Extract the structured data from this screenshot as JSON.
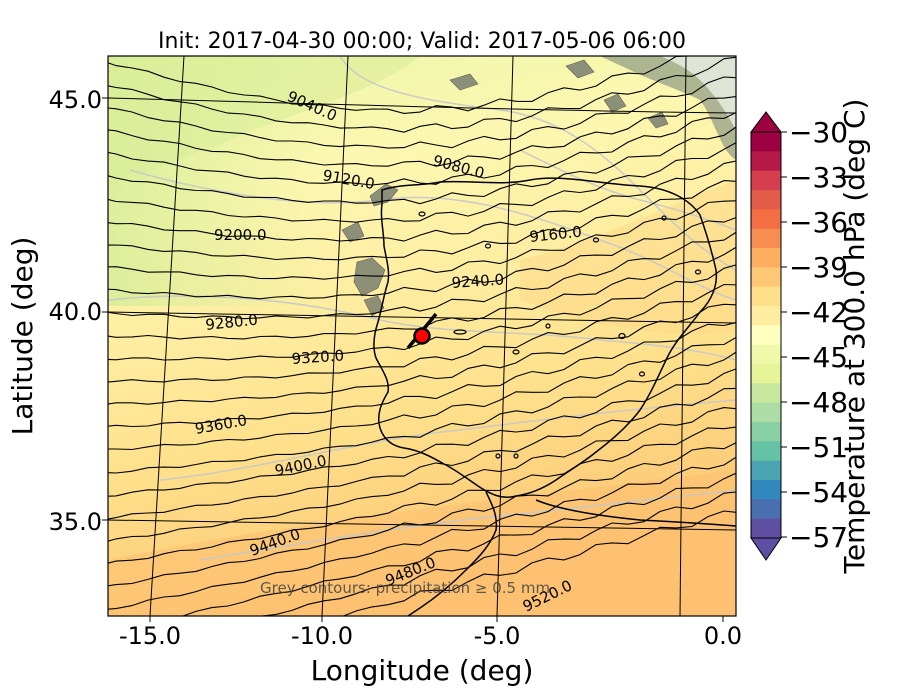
{
  "chart_data": {
    "type": "map",
    "title": "Init: 2017-04-30 00:00; Valid: 2017-05-06 06:00",
    "xlabel": "Longitude (deg)",
    "ylabel": "Latitude (deg)",
    "xlim": [
      -16.0,
      0.3
    ],
    "ylim": [
      32.8,
      46.0
    ],
    "xticks": [
      "-15.0",
      "-10.0",
      "-5.0",
      "0.0"
    ],
    "yticks": [
      "45.0",
      "40.0",
      "35.0"
    ],
    "annotation": "Grey contours: precipitation ≥ 0.5 mm",
    "colorbar": {
      "label": "Temperature at 300.0 hPa (deg C)",
      "ticks": [
        "−30",
        "−33",
        "−36",
        "−39",
        "−42",
        "−45",
        "−48",
        "−51",
        "−54",
        "−57"
      ],
      "range": [
        -57,
        -30
      ]
    },
    "contours": [
      {
        "label": "9040.0",
        "level": 9040
      },
      {
        "label": "9080.0",
        "level": 9080
      },
      {
        "label": "9120.0",
        "level": 9120
      },
      {
        "label": "9160.0",
        "level": 9160
      },
      {
        "label": "9200.0",
        "level": 9200
      },
      {
        "label": "9240.0",
        "level": 9240
      },
      {
        "label": "9280.0",
        "level": 9280
      },
      {
        "label": "9320.0",
        "level": 9320
      },
      {
        "label": "9360.0",
        "level": 9360
      },
      {
        "label": "9400.0",
        "level": 9400
      },
      {
        "label": "9440.0",
        "level": 9440
      },
      {
        "label": "9480.0",
        "level": 9480
      },
      {
        "label": "9520.0",
        "level": 9520
      }
    ],
    "marker": {
      "lon": -7.6,
      "lat": 39.3,
      "color": "#ff0000"
    }
  }
}
